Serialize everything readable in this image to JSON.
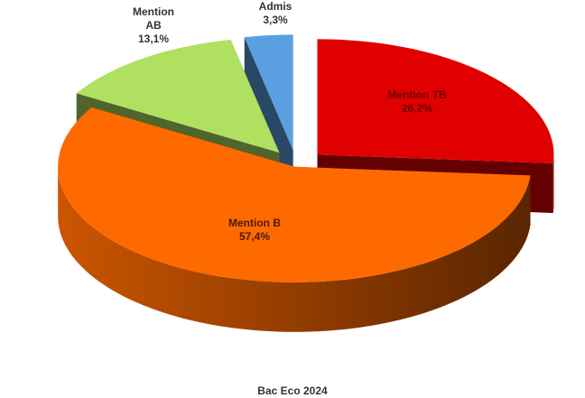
{
  "chart_data": {
    "type": "pie3d",
    "title": "Bac Eco 2024",
    "categories": [
      "Mention TB",
      "Mention B",
      "Mention AB",
      "Admis"
    ],
    "values": [
      26.2,
      57.4,
      13.1,
      3.3
    ],
    "value_labels": [
      "26,2%",
      "57,4%",
      "13,1%",
      "3,3%"
    ],
    "colors": [
      "#e00000",
      "#ff6a00",
      "#b0e060",
      "#5aa0e0"
    ]
  }
}
